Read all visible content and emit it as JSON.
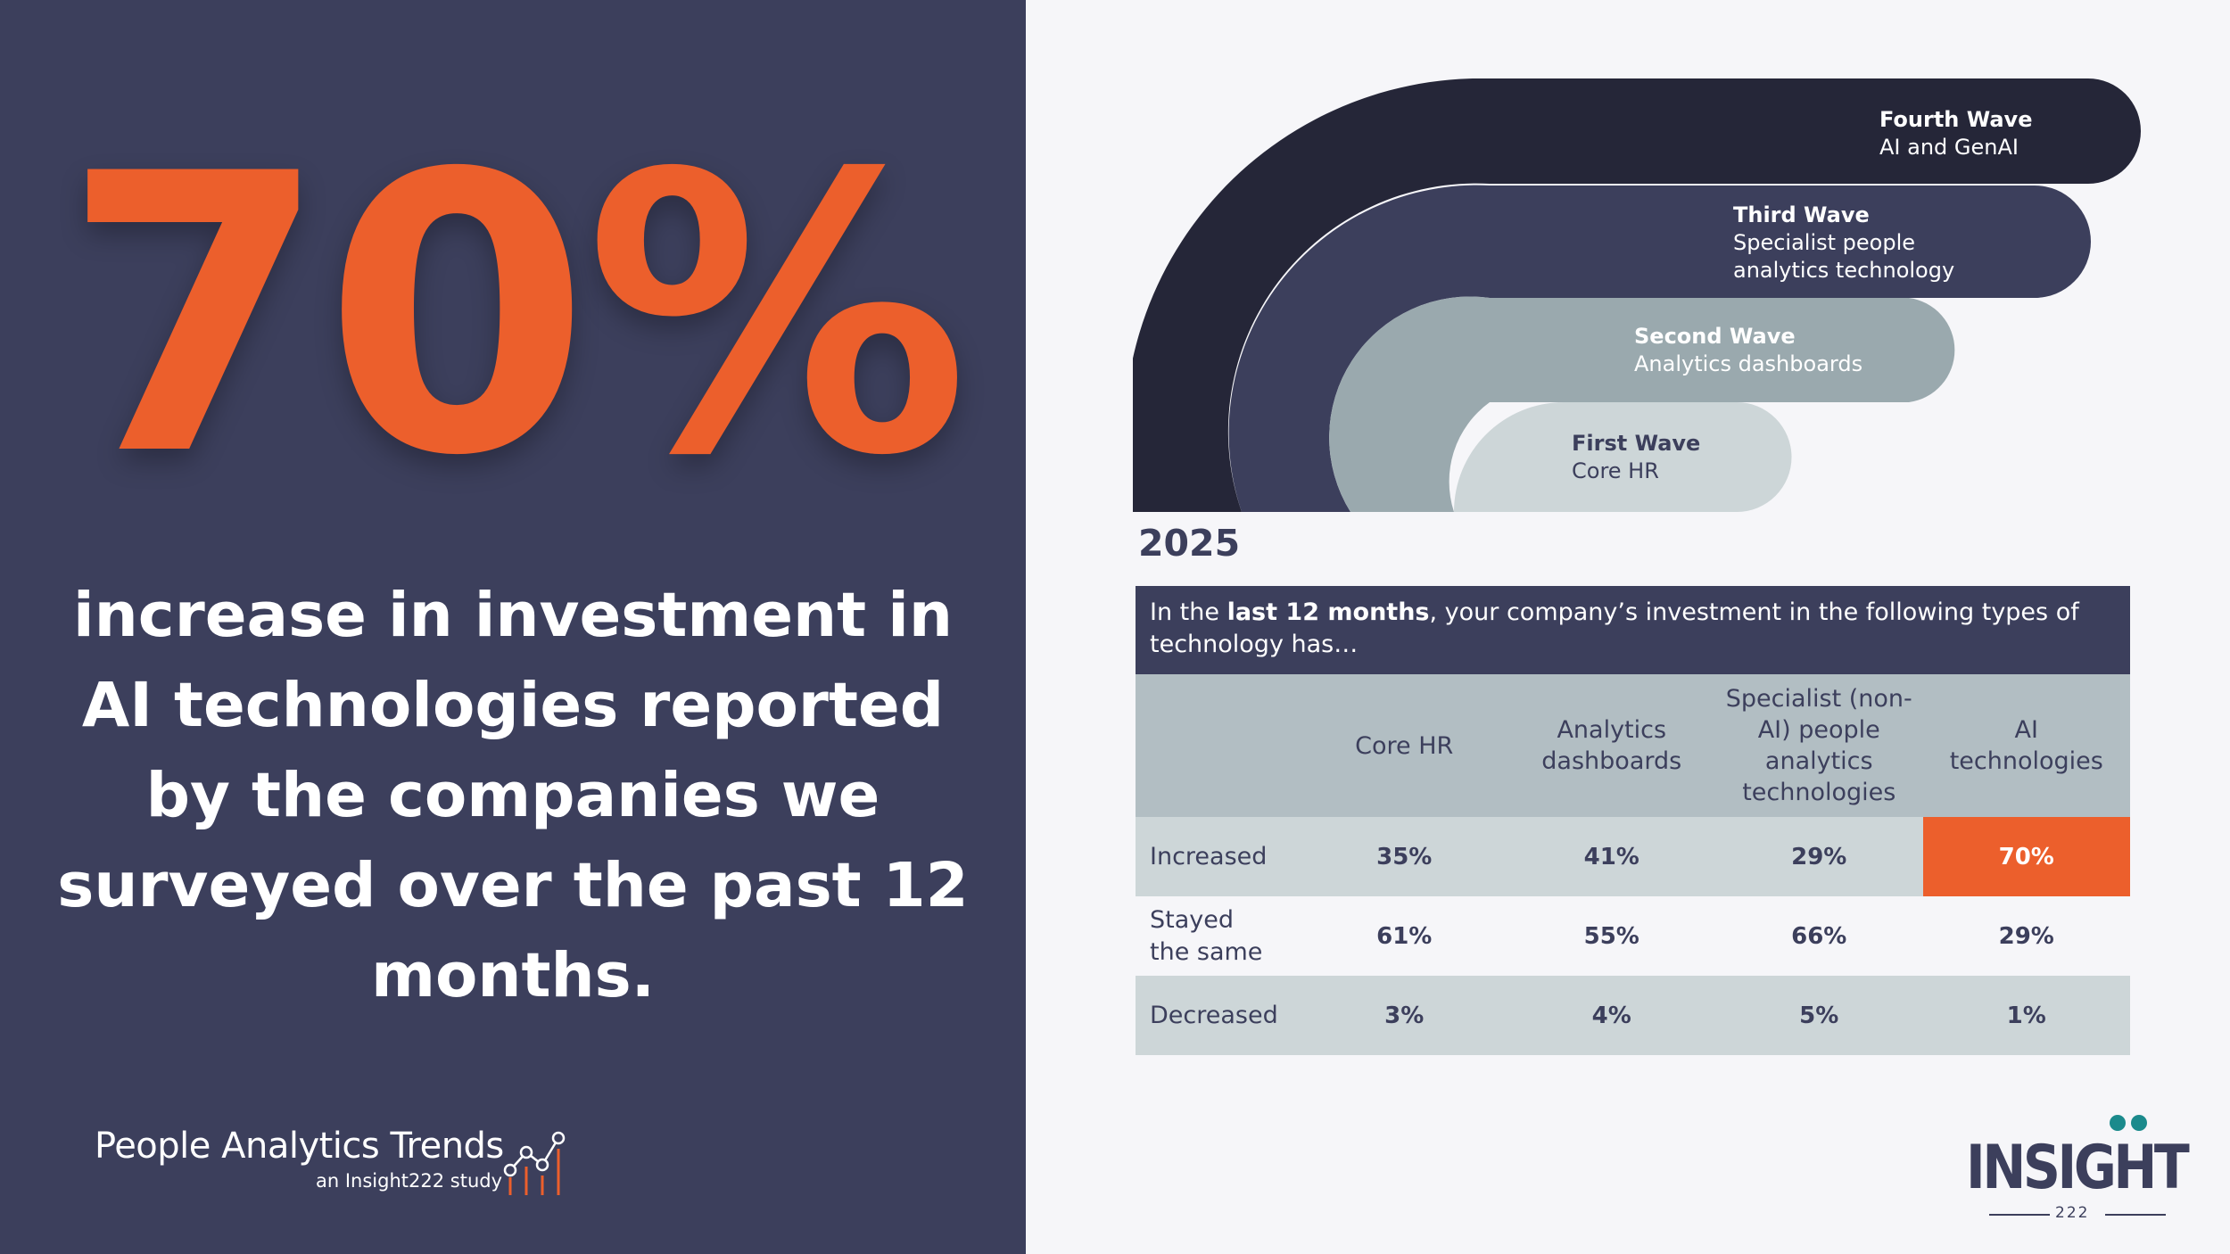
{
  "headline": {
    "percent": "70%",
    "description": "increase in investment in AI technologies reported by the companies we surveyed over the past 12 months."
  },
  "brand": {
    "title": "People Analytics Trends",
    "subtitle": "an Insight222 study"
  },
  "waves": [
    {
      "title": "Fourth Wave",
      "desc": [
        "AI and GenAI"
      ],
      "color": "#252638"
    },
    {
      "title": "Third Wave",
      "desc": [
        "Specialist people",
        "analytics technology"
      ],
      "color": "#3c3f5c"
    },
    {
      "title": "Second Wave",
      "desc": [
        "Analytics dashboards"
      ],
      "color": "#9aa9ae"
    },
    {
      "title": "First Wave",
      "desc": [
        "Core HR"
      ],
      "color": "#cdd6d8"
    }
  ],
  "year": "2025",
  "table": {
    "question_pre": "In the ",
    "question_bold": "last 12 months",
    "question_post": ", your company’s investment in the following types of technology has…",
    "columns": [
      "",
      "Core HR",
      "Analytics dashboards",
      "Specialist (non-AI) people analytics technologies",
      "AI technologies"
    ],
    "rows": [
      {
        "label": "Increased",
        "values": [
          "35%",
          "41%",
          "29%",
          "70%"
        ]
      },
      {
        "label": "Stayed the same",
        "values": [
          "61%",
          "55%",
          "66%",
          "29%"
        ]
      },
      {
        "label": "Decreased",
        "values": [
          "3%",
          "4%",
          "5%",
          "1%"
        ]
      }
    ],
    "highlight_color": "#ec5f2c"
  },
  "logo": {
    "word": "INSIGHT",
    "number": "222"
  },
  "colors": {
    "navy": "#3c3f5c",
    "orange": "#ec5f2c",
    "dark": "#252638"
  }
}
